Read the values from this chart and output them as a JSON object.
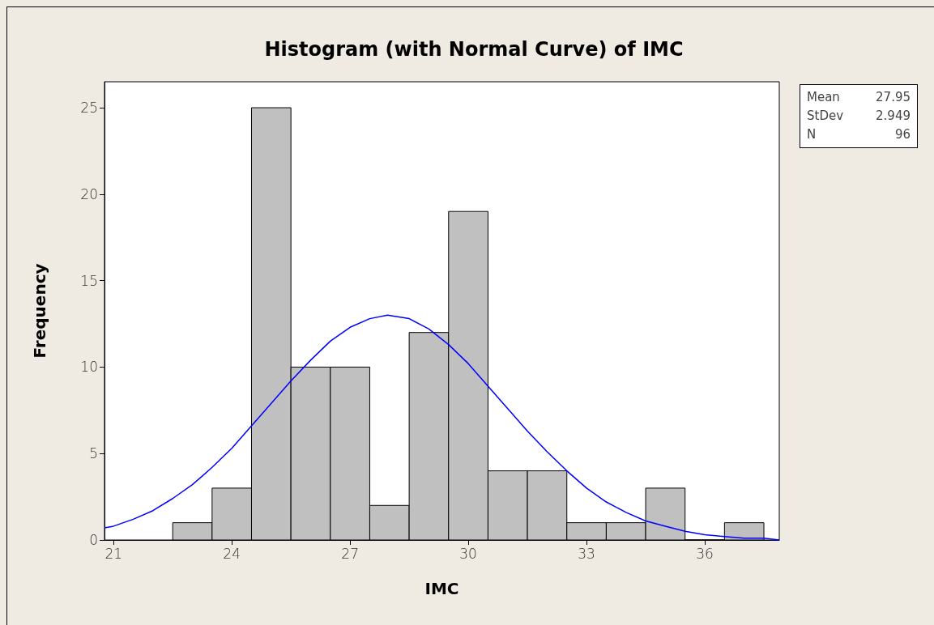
{
  "chart_data": {
    "type": "histogram",
    "title": "Histogram (with Normal Curve) of IMC",
    "xlabel": "IMC",
    "ylabel": "Frequency",
    "annotations": [
      "Mean 27.95",
      "StDev 2.949",
      "N 96"
    ],
    "xlim": [
      20.77,
      37.89
    ],
    "xticks": [
      21,
      24,
      27,
      30,
      33,
      36
    ],
    "ylim": [
      0,
      26.5
    ],
    "yticks": [
      0,
      5,
      10,
      15,
      20,
      25
    ],
    "grid": false,
    "marker": "none",
    "series": [
      {
        "color": "#c0c0c0",
        "bins": [
          22.5,
          23.5,
          24.5,
          25.5,
          26.5,
          27.5,
          28.5,
          29.5,
          30.5,
          31.5,
          32.5,
          33.5,
          34.5,
          35.5,
          36.5,
          37.5
        ],
        "values": [
          1,
          3,
          25,
          10,
          10,
          2,
          12,
          19,
          4,
          4,
          1,
          1,
          3,
          0,
          1
        ]
      },
      {
        "type": "line",
        "color": "#0000ff",
        "x": [
          20.77,
          21,
          21.5,
          22,
          22.5,
          23,
          23.5,
          24,
          24.5,
          25,
          25.5,
          26,
          26.5,
          27,
          27.5,
          27.95,
          28.5,
          29,
          29.5,
          30,
          30.5,
          31,
          31.5,
          32,
          32.5,
          33,
          33.5,
          34,
          34.5,
          35,
          35.5,
          36,
          36.5,
          37,
          37.5,
          37.89
        ],
        "values": [
          0.7,
          0.8,
          1.2,
          1.7,
          2.4,
          3.2,
          4.2,
          5.3,
          6.6,
          7.9,
          9.2,
          10.4,
          11.5,
          12.3,
          12.8,
          13,
          12.8,
          12.2,
          11.3,
          10.2,
          8.9,
          7.6,
          6.3,
          5.1,
          4,
          3,
          2.2,
          1.6,
          1.1,
          0.8,
          0.5,
          0.3,
          0.2,
          0.1,
          0.1,
          0
        ]
      }
    ]
  }
}
